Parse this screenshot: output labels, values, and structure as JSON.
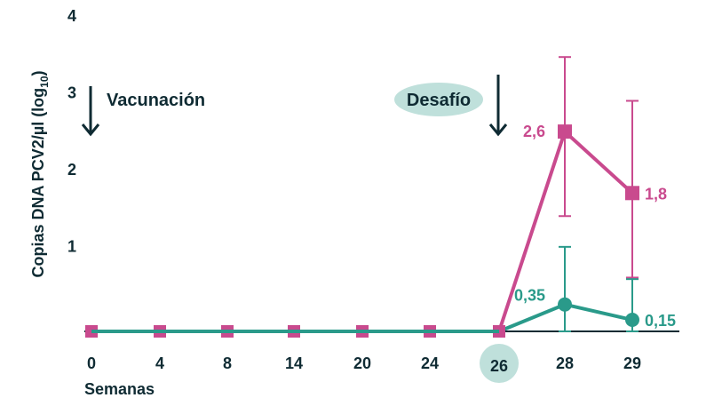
{
  "chart_data": {
    "type": "line",
    "xlabel": "Semanas",
    "ylabel": "Copias DNA PCV2/µl (log",
    "ylabel_subscript": "10",
    "ylabel_close": ")",
    "categories": [
      "0",
      "4",
      "8",
      "14",
      "20",
      "24",
      "26",
      "28",
      "29"
    ],
    "highlighted_category": "26",
    "ylim": [
      0,
      4
    ],
    "yticks": [
      "1",
      "2",
      "3",
      "4"
    ],
    "grid": false,
    "series": [
      {
        "color": "#c94a8e",
        "marker": "square",
        "values": [
          0,
          0,
          0,
          0,
          0,
          0,
          0,
          2.6,
          1.8
        ],
        "error_upper": [
          null,
          null,
          null,
          null,
          null,
          null,
          null,
          3.57,
          3.0
        ],
        "error_lower": [
          null,
          null,
          null,
          null,
          null,
          null,
          null,
          1.5,
          0.7
        ],
        "data_labels": [
          {
            "index": 7,
            "text": "2,6"
          },
          {
            "index": 8,
            "text": "1,8"
          }
        ]
      },
      {
        "color": "#2a9a8a",
        "marker": "circle",
        "values": [
          0,
          0,
          0,
          0,
          0,
          0,
          0,
          0.35,
          0.15
        ],
        "error_upper": [
          null,
          null,
          null,
          null,
          null,
          null,
          null,
          1.1,
          0.68
        ],
        "error_lower": [
          null,
          null,
          null,
          null,
          null,
          null,
          null,
          0,
          0
        ],
        "data_labels": [
          {
            "index": 7,
            "text": "0,35"
          },
          {
            "index": 8,
            "text": "0,15"
          }
        ]
      }
    ],
    "annotations": [
      {
        "text": "Vacunación",
        "at_category": "0",
        "arrow": "down"
      },
      {
        "text": "Desafío",
        "at_category": "26",
        "arrow": "down",
        "badge": true
      }
    ],
    "colors": {
      "text": "#0f2b33",
      "highlight_badge": "#bfe0db"
    }
  }
}
